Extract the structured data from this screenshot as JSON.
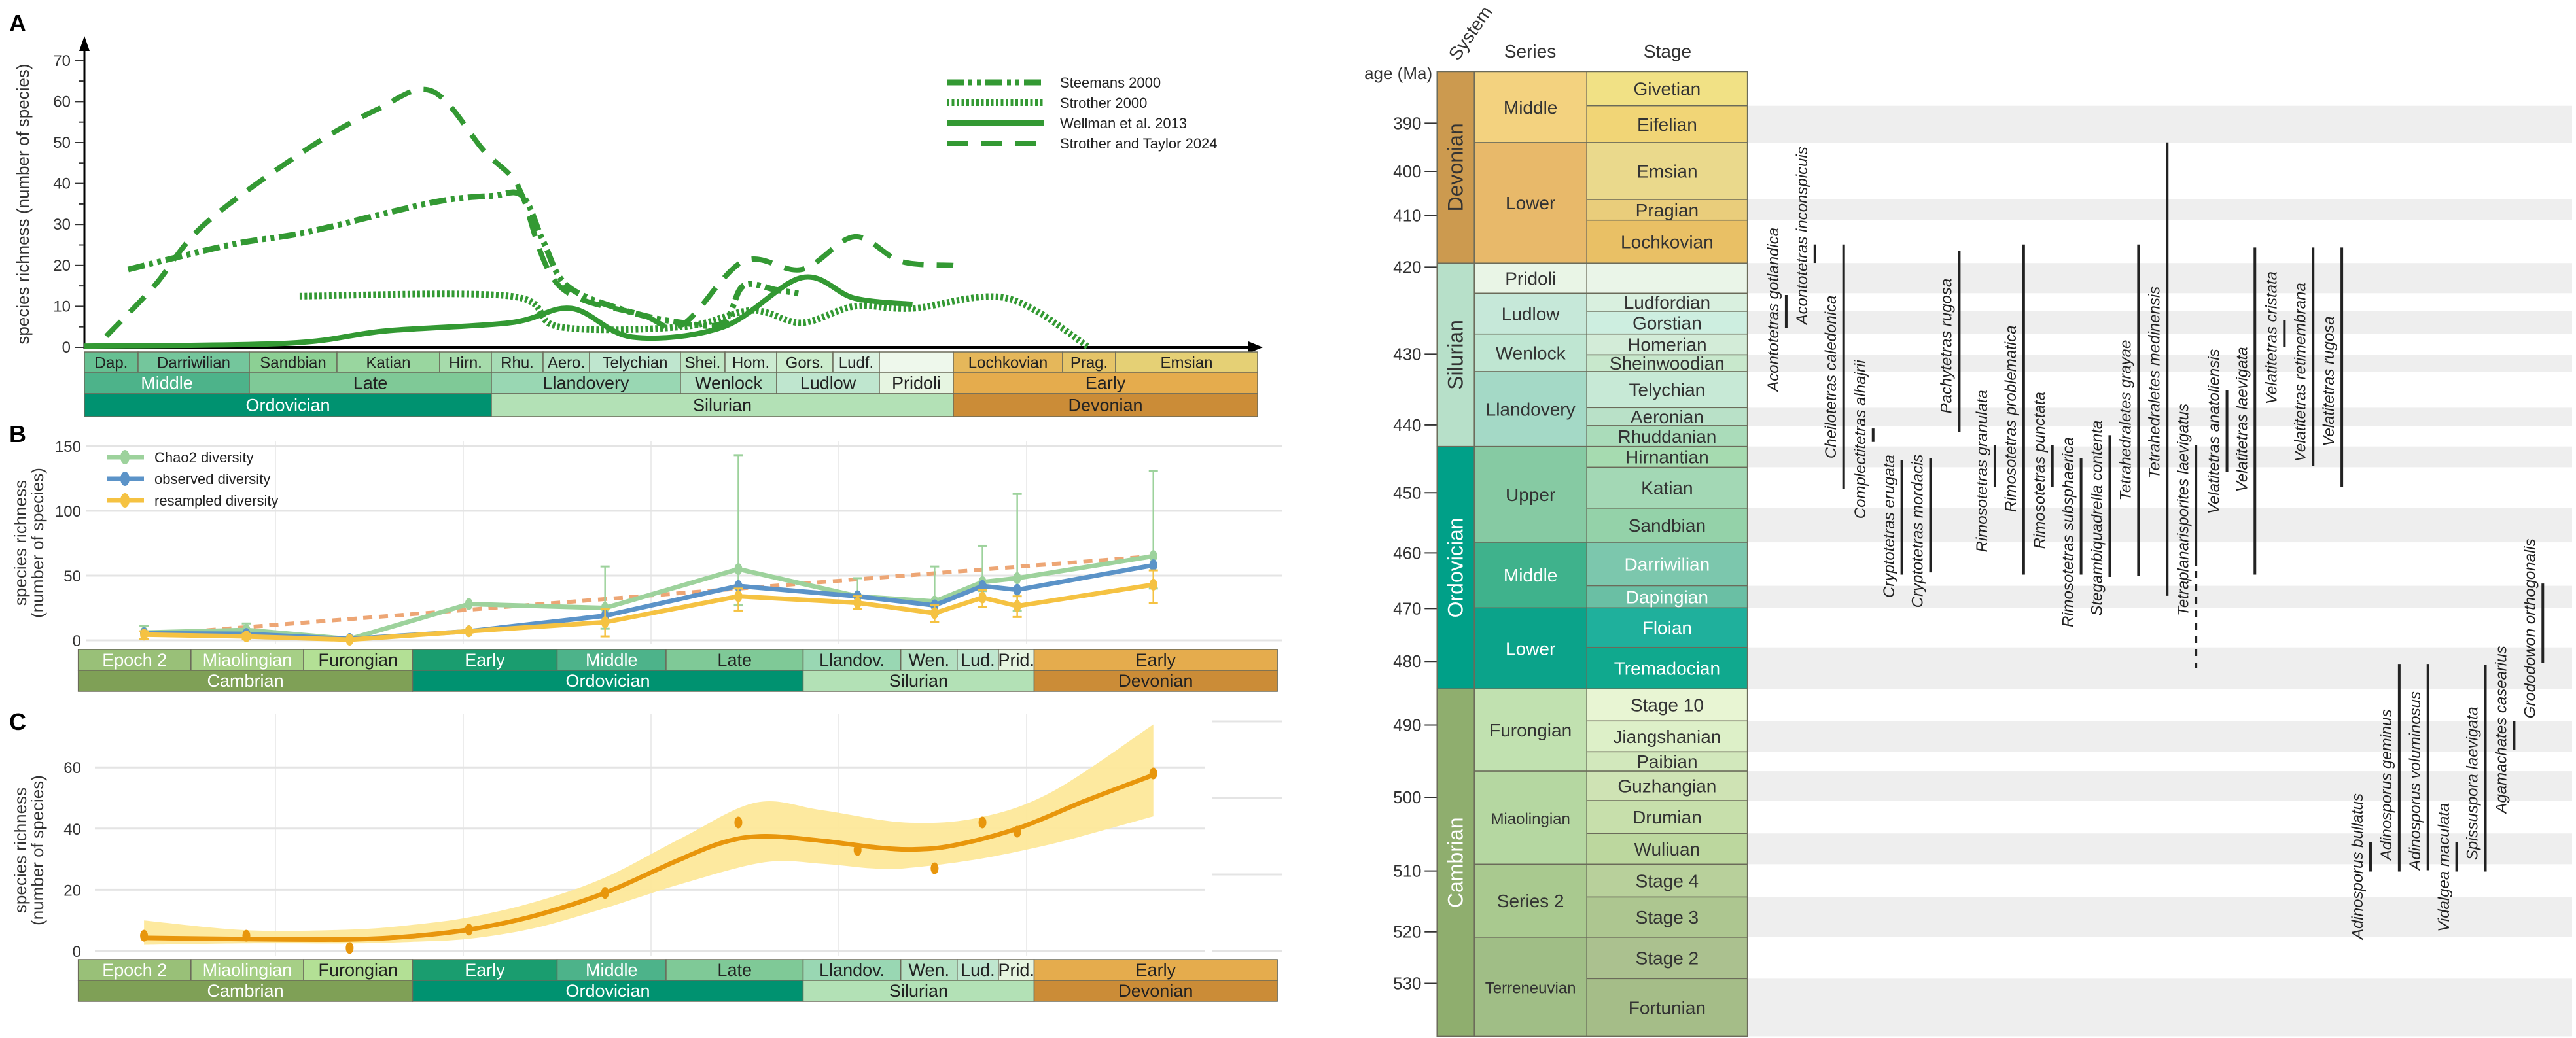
{
  "panel_labels": {
    "a": "A",
    "b": "B",
    "c": "C"
  },
  "chart_data": [
    {
      "panel": "A",
      "type": "line",
      "ylabel": "species richness (number of species)",
      "ylim": [
        0,
        70
      ],
      "yticks": [
        "0",
        "10",
        "20",
        "30",
        "40",
        "50",
        "60",
        "70"
      ],
      "x_axis": "geologic time (Ma, not printed)",
      "legend": "top-right",
      "color": "#339933",
      "series": [
        {
          "name": "Steemans 2000",
          "style": "dash-dot-dot",
          "points": [
            [
              467.8,
              19
            ],
            [
              460,
              25
            ],
            [
              455,
              28
            ],
            [
              449,
              33
            ],
            [
              445,
              36
            ],
            [
              443.7,
              37
            ],
            [
              442.0,
              37
            ],
            [
              440.8,
              26
            ],
            [
              439.6,
              15
            ],
            [
              436.5,
              9
            ],
            [
              433.3,
              6
            ],
            [
              430.6,
              6
            ],
            [
              429.4,
              15
            ],
            [
              427.4,
              14
            ],
            [
              426.6,
              13
            ]
          ]
        },
        {
          "name": "Strother 2000",
          "style": "dotted",
          "points": [
            [
              455.3,
              12.5
            ],
            [
              442.7,
              12.5
            ],
            [
              440.0,
              5
            ],
            [
              433.3,
              5
            ],
            [
              428.9,
              9
            ],
            [
              426.6,
              6
            ],
            [
              424.4,
              10
            ],
            [
              421.3,
              9.5
            ],
            [
              415.1,
              12
            ],
            [
              409.2,
              0
            ]
          ]
        },
        {
          "name": "Wellman et al. 2013",
          "style": "solid",
          "points": [
            [
              470,
              0.3
            ],
            [
              456,
              1
            ],
            [
              449.3,
              4
            ],
            [
              442.7,
              6
            ],
            [
              439.4,
              9.5
            ],
            [
              436.1,
              2.5
            ],
            [
              430.6,
              5
            ],
            [
              426.6,
              17
            ],
            [
              424.4,
              12
            ],
            [
              421.3,
              10.5
            ]
          ]
        },
        {
          "name": "Strother and Taylor 2024",
          "style": "dashed",
          "points": [
            [
              468.9,
              2.7
            ],
            [
              466,
              15
            ],
            [
              462,
              30
            ],
            [
              455,
              48
            ],
            [
              450,
              58
            ],
            [
              445.8,
              62.6
            ],
            [
              444,
              48
            ],
            [
              442.7,
              42
            ],
            [
              442,
              37
            ],
            [
              440,
              15
            ],
            [
              435.6,
              8
            ],
            [
              433.3,
              5.5
            ],
            [
              429.4,
              21
            ],
            [
              426.6,
              19
            ],
            [
              424.4,
              27
            ],
            [
              421.9,
              21
            ],
            [
              419.2,
              20
            ]
          ]
        }
      ],
      "timescale": {
        "stages": [
          "Dap.",
          "Darriwilian",
          "Sandbian",
          "Katian",
          "Hirn.",
          "Rhu.",
          "Aero.",
          "Telychian",
          "Shei.",
          "Hom.",
          "Gors.",
          "Ludf.",
          "",
          "Lochkovian",
          "Prag.",
          "Emsian"
        ],
        "series": [
          "Middle",
          "Late",
          "Llandovery",
          "Wenlock",
          "Ludlow",
          "Pridoli",
          "Early"
        ],
        "systems": [
          "Ordovician",
          "Silurian",
          "Devonian"
        ]
      }
    },
    {
      "panel": "B",
      "type": "line",
      "ylabel": [
        "species richness",
        "(number of species)"
      ],
      "ylim": [
        0,
        150
      ],
      "yticks": [
        "0",
        "50",
        "100",
        "150"
      ],
      "grid": true,
      "legend": "top-left",
      "x_ages_ma": [
        514,
        503.1,
        492.1,
        479.4,
        464.9,
        450.7,
        438.0,
        429.8,
        424.7,
        421.0,
        406.5
      ],
      "series": [
        {
          "name": "Chao2 diversity",
          "color": "#9dd29c",
          "values": [
            6,
            8,
            1,
            28,
            25,
            55,
            34,
            30,
            45,
            48,
            65
          ],
          "error": [
            [
              1,
              11
            ],
            [
              3,
              13
            ],
            [
              1,
              1
            ],
            [
              28,
              28
            ],
            [
              9,
              57
            ],
            [
              27,
              143
            ],
            [
              24,
              48
            ],
            [
              20,
              57
            ],
            [
              38,
              73
            ],
            [
              23,
              113
            ],
            [
              40,
              131
            ]
          ]
        },
        {
          "name": "observed diversity",
          "color": "#5b93c8",
          "values": [
            5.5,
            5,
            1,
            7,
            19,
            42,
            34,
            27,
            42,
            39,
            58
          ]
        },
        {
          "name": "resampled diversity",
          "color": "#f5c242",
          "values": [
            4.4,
            3,
            0.5,
            7,
            14,
            34,
            29,
            21,
            33,
            26.5,
            43
          ],
          "error": [
            [
              1,
              7
            ],
            [
              1,
              5
            ],
            [
              0,
              1
            ],
            [
              6,
              8
            ],
            [
              3,
              24
            ],
            [
              23,
              40
            ],
            [
              24,
              34
            ],
            [
              14,
              27
            ],
            [
              26,
              39
            ],
            [
              18,
              34
            ],
            [
              29,
              54
            ]
          ]
        }
      ],
      "trend": {
        "color": "#eda675",
        "style": "dashed",
        "points": [
          [
            514,
            4
          ],
          [
            406.5,
            65
          ]
        ]
      },
      "timescale": {
        "series": [
          "Epoch 2",
          "Miaolingian",
          "Furongian",
          "Early",
          "Middle",
          "Late",
          "Llandov.",
          "Wen.",
          "Lud.",
          "Prid.",
          "Early"
        ],
        "systems": [
          "Cambrian",
          "Ordovician",
          "Silurian",
          "Devonian"
        ]
      }
    },
    {
      "panel": "C",
      "type": "scatter",
      "ylabel": [
        "species richness",
        "(number of species)"
      ],
      "ylim": [
        0,
        75
      ],
      "yticks": [
        "0",
        "20",
        "40",
        "60"
      ],
      "grid": true,
      "point_color": "#e8960c",
      "band_color": "#fde89a",
      "x_ages_ma": [
        514,
        503.1,
        492.1,
        479.4,
        464.9,
        450.7,
        438.0,
        429.8,
        424.7,
        421.0,
        406.5
      ],
      "values": [
        5,
        5,
        1,
        7,
        19,
        42,
        33,
        27,
        42,
        39,
        58
      ],
      "fit": [
        [
          514,
          4.3
        ],
        [
          503.1,
          3.9
        ],
        [
          492.1,
          3.8
        ],
        [
          485.6,
          4.8
        ],
        [
          479.4,
          7
        ],
        [
          472.4,
          11.5
        ],
        [
          464.9,
          19
        ],
        [
          457.6,
          29
        ],
        [
          452.3,
          35.5
        ],
        [
          447.9,
          37.5
        ],
        [
          441.8,
          36
        ],
        [
          436.5,
          34
        ],
        [
          432.2,
          33.2
        ],
        [
          427.8,
          34.5
        ],
        [
          421,
          40
        ],
        [
          413.8,
          49
        ],
        [
          406.5,
          57.5
        ]
      ],
      "fit_upper": [
        [
          514,
          10
        ],
        [
          503.1,
          6.8
        ],
        [
          492.1,
          7
        ],
        [
          485.6,
          8.5
        ],
        [
          479.4,
          11
        ],
        [
          472.4,
          16
        ],
        [
          464.9,
          24
        ],
        [
          456.7,
          37
        ],
        [
          448.8,
          48.5
        ],
        [
          441.8,
          46
        ],
        [
          433,
          42
        ],
        [
          425.2,
          43.5
        ],
        [
          417.3,
          52
        ],
        [
          406.5,
          74
        ]
      ],
      "fit_lower": [
        [
          514,
          2
        ],
        [
          503.1,
          2.5
        ],
        [
          492.1,
          2.5
        ],
        [
          485.6,
          3
        ],
        [
          479.4,
          4
        ],
        [
          472.4,
          7.5
        ],
        [
          464.9,
          14
        ],
        [
          456.7,
          22
        ],
        [
          447.9,
          29
        ],
        [
          441.8,
          28.5
        ],
        [
          436.5,
          27
        ],
        [
          433,
          27
        ],
        [
          425.2,
          30
        ],
        [
          417.3,
          35
        ],
        [
          411.2,
          40
        ],
        [
          406.5,
          44
        ]
      ],
      "timescale": {
        "series": [
          "Epoch 2",
          "Miaolingian",
          "Furongian",
          "Early",
          "Middle",
          "Late",
          "Llandov.",
          "Wen.",
          "Lud.",
          "Prid.",
          "Early"
        ],
        "systems": [
          "Cambrian",
          "Ordovician",
          "Silurian",
          "Devonian"
        ]
      }
    },
    {
      "panel": "range-chart",
      "type": "table",
      "headers": {
        "system": "System",
        "series": "Series",
        "stage": "Stage",
        "age": "age (Ma)"
      },
      "age_ticks": [
        "390",
        "400",
        "410",
        "420",
        "430",
        "440",
        "450",
        "460",
        "470",
        "480",
        "490",
        "500",
        "510",
        "520",
        "530"
      ],
      "systems": [
        "Devonian",
        "Silurian",
        "Ordovician",
        "Cambrian"
      ],
      "series": [
        "Middle",
        "Lower",
        "Pridoli",
        "Ludlow",
        "Wenlock",
        "Llandovery",
        "Upper",
        "Middle",
        "Lower",
        "Furongian",
        "Miaolingian",
        "Series 2",
        "Terreneuvian"
      ],
      "stages": [
        "Givetian",
        "Eifelian",
        "Emsian",
        "Pragian",
        "Lochkovian",
        "",
        "Ludfordian",
        "Gorstian",
        "Homerian",
        "Sheinwoodian",
        "Telychian",
        "Aeronian",
        "Rhuddanian",
        "Hirnantian",
        "Katian",
        "Sandbian",
        "Darriwilian",
        "Dapingian",
        "Floian",
        "Tremadocian",
        "Stage 10",
        "Jiangshanian",
        "Paibian",
        "Guzhangian",
        "Drumian",
        "Wuliuan",
        "Stage 4",
        "Stage 3",
        "Stage 2",
        "Fortunian"
      ],
      "taxa": [
        {
          "name": "Acontotetras gotlandica",
          "range_ma": [
            423.2,
            427.0
          ]
        },
        {
          "name": "Acontotetras inconspicuis",
          "range_ma": [
            415.6,
            419.2
          ]
        },
        {
          "name": "Cheilotetras caledonica",
          "range_ma": [
            415.6,
            449.4
          ]
        },
        {
          "name": "Complectitetras alhajrii",
          "range_ma": [
            440.5,
            442.5
          ]
        },
        {
          "name": "Cryptotetras erugata",
          "range_ma": [
            445.2,
            463.9
          ]
        },
        {
          "name": "Cryptotetras mordacis",
          "range_ma": [
            444.9,
            463.5
          ]
        },
        {
          "name": "Pachytetras rugosa",
          "range_ma": [
            416.9,
            441.0
          ]
        },
        {
          "name": "Rimosotetras granulata",
          "range_ma": [
            443.0,
            449.2
          ]
        },
        {
          "name": "Rimosotetras problematica",
          "range_ma": [
            415.6,
            463.9
          ]
        },
        {
          "name": "Rimosotetras punctata",
          "range_ma": [
            443.0,
            449.2
          ]
        },
        {
          "name": "Rimosotetras subsphaerica",
          "range_ma": [
            444.9,
            463.9
          ]
        },
        {
          "name": "Stegambiquadrella contenta",
          "range_ma": [
            441.5,
            464.3
          ]
        },
        {
          "name": "Tetrahedraletes grayae",
          "range_ma": [
            415.6,
            464.1
          ]
        },
        {
          "name": "Tetrahedraletes medinensis",
          "range_ma": [
            394.0,
            467.7
          ]
        },
        {
          "name": "Tetraplanarisporites laevigatus",
          "range_ma": [
            443.0,
            462.3
          ],
          "uncertain_extension_ma": [
            462.3,
            481.1
          ]
        },
        {
          "name": "Velatitetras anatoliensis",
          "range_ma": [
            435.1,
            446.9
          ]
        },
        {
          "name": "Velatitetras laevigata",
          "range_ma": [
            416.2,
            463.9
          ]
        },
        {
          "name": "Velatitetras cristata",
          "range_ma": [
            426.1,
            429.2
          ]
        },
        {
          "name": "Velatitetras retimembrana",
          "range_ma": [
            416.2,
            446.1
          ]
        },
        {
          "name": "Velatitetras rugosa",
          "range_ma": [
            416.2,
            449.1
          ]
        },
        {
          "name": "Adinosporus bullatus",
          "range_ma": [
            506.1,
            510.1
          ]
        },
        {
          "name": "Adinosporus geminus",
          "range_ma": [
            480.4,
            510.1
          ]
        },
        {
          "name": "Adinosporus voluminosus",
          "range_ma": [
            480.4,
            509.9
          ]
        },
        {
          "name": "Vidalgea maculata",
          "range_ma": [
            506.1,
            510.1
          ]
        },
        {
          "name": "Spissuspora laevigata",
          "range_ma": [
            480.6,
            510.1
          ]
        },
        {
          "name": "Agamachates casearius",
          "range_ma": [
            489.4,
            493.4
          ]
        },
        {
          "name": "Grododowon orthogonalis",
          "range_ma": [
            465.5,
            480.2
          ]
        }
      ]
    }
  ]
}
